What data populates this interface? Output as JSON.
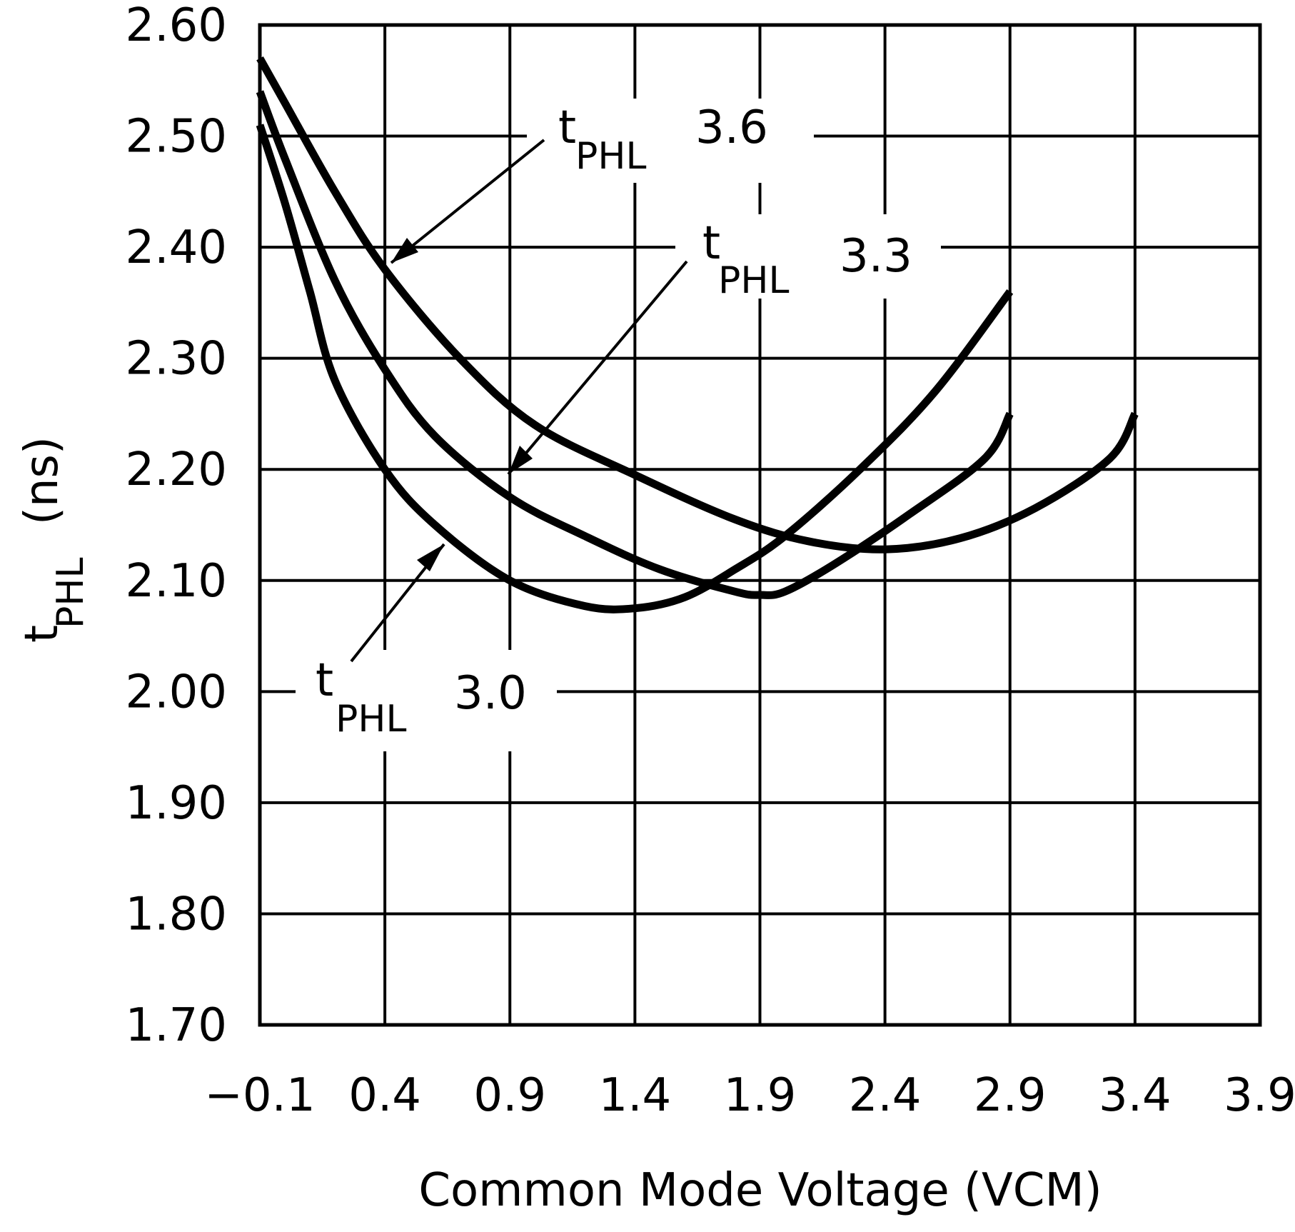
{
  "chart_data": {
    "type": "line",
    "xlabel": "Common Mode Voltage (VCM)",
    "ylabel": {
      "main": "t",
      "sub": "PHL",
      "unit": "(ns)"
    },
    "xlim": [
      -0.1,
      3.9
    ],
    "ylim": [
      1.7,
      2.6
    ],
    "x_ticks": [
      "−0.1",
      "0.4",
      "0.9",
      "1.4",
      "1.9",
      "2.4",
      "2.9",
      "3.4",
      "3.9"
    ],
    "x_tick_values": [
      -0.1,
      0.4,
      0.9,
      1.4,
      1.9,
      2.4,
      2.9,
      3.4,
      3.9
    ],
    "y_ticks": [
      "2.60",
      "2.50",
      "2.40",
      "2.30",
      "2.20",
      "2.10",
      "2.00",
      "1.90",
      "1.80",
      "1.70"
    ],
    "y_tick_values": [
      2.6,
      2.5,
      2.4,
      2.3,
      2.2,
      2.1,
      2.0,
      1.9,
      1.8,
      1.7
    ],
    "grid": true,
    "legend": "none",
    "line_color": "#000000",
    "series": [
      {
        "annotation": {
          "main": "t",
          "sub": "PHL",
          "value": "3.6"
        },
        "x": [
          -0.1,
          0.0,
          0.2,
          0.4,
          0.7,
          1.0,
          1.4,
          1.8,
          2.1,
          2.4,
          2.7,
          3.0,
          3.3,
          3.4
        ],
        "y": [
          2.57,
          2.53,
          2.45,
          2.38,
          2.3,
          2.24,
          2.195,
          2.155,
          2.135,
          2.128,
          2.138,
          2.165,
          2.21,
          2.25
        ]
      },
      {
        "annotation": {
          "main": "t",
          "sub": "PHL",
          "value": "3.3"
        },
        "x": [
          -0.1,
          0.0,
          0.2,
          0.4,
          0.6,
          0.9,
          1.2,
          1.5,
          1.8,
          1.9,
          2.0,
          2.2,
          2.5,
          2.8,
          2.9
        ],
        "y": [
          2.54,
          2.48,
          2.37,
          2.29,
          2.23,
          2.175,
          2.14,
          2.11,
          2.09,
          2.087,
          2.09,
          2.115,
          2.16,
          2.21,
          2.25
        ]
      },
      {
        "annotation": {
          "main": "t",
          "sub": "PHL",
          "value": "3.0"
        },
        "x": [
          -0.1,
          0.0,
          0.1,
          0.2,
          0.4,
          0.6,
          0.9,
          1.2,
          1.4,
          1.6,
          1.8,
          2.0,
          2.3,
          2.6,
          2.9
        ],
        "y": [
          2.51,
          2.44,
          2.36,
          2.28,
          2.2,
          2.15,
          2.1,
          2.077,
          2.075,
          2.085,
          2.11,
          2.14,
          2.2,
          2.27,
          2.36
        ]
      }
    ]
  }
}
